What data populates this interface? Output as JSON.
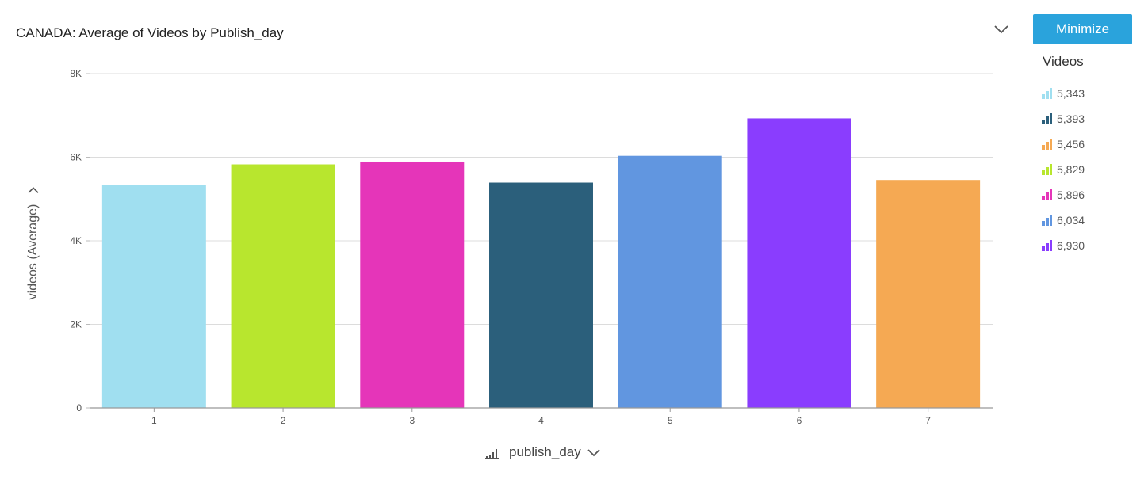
{
  "header": {
    "title": "CANADA: Average of Videos by Publish_day",
    "minimize_label": "Minimize"
  },
  "legend": {
    "title": "Videos",
    "items": [
      {
        "label": "5,343",
        "color": "#a0dff0"
      },
      {
        "label": "5,393",
        "color": "#2b5f7b"
      },
      {
        "label": "5,456",
        "color": "#f5a953"
      },
      {
        "label": "5,829",
        "color": "#b8e62e"
      },
      {
        "label": "5,896",
        "color": "#e535b9"
      },
      {
        "label": "6,034",
        "color": "#6196e0"
      },
      {
        "label": "6,930",
        "color": "#8a3dfe"
      }
    ]
  },
  "axes": {
    "x_control_label": "publish_day",
    "y_control_label": "videos (Average)"
  },
  "chart_data": {
    "type": "bar",
    "title": "CANADA: Average of Videos by Publish_day",
    "xlabel": "publish_day",
    "ylabel": "videos (Average)",
    "categories": [
      "1",
      "2",
      "3",
      "4",
      "5",
      "6",
      "7"
    ],
    "values": [
      5343,
      5829,
      5896,
      5393,
      6034,
      6930,
      5456
    ],
    "colors": [
      "#a0dff0",
      "#b8e62e",
      "#e535b9",
      "#2b5f7b",
      "#6196e0",
      "#8a3dfe",
      "#f5a953"
    ],
    "ylim": [
      0,
      8000
    ],
    "yticks": [
      0,
      2000,
      4000,
      6000,
      8000
    ],
    "ytick_labels": [
      "0",
      "2K",
      "4K",
      "6K",
      "8K"
    ],
    "grid": true,
    "legend_position": "right"
  }
}
